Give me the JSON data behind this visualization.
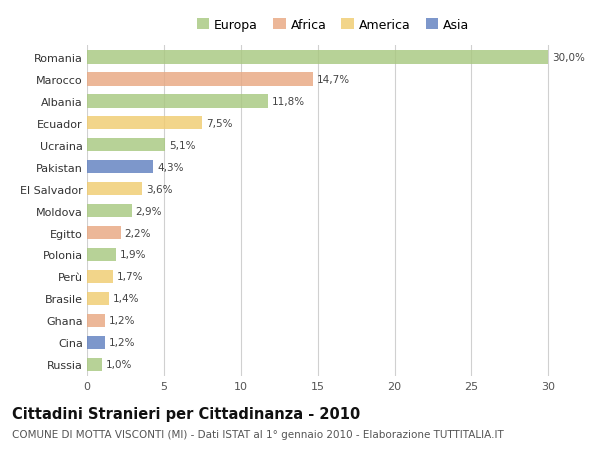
{
  "countries": [
    "Romania",
    "Marocco",
    "Albania",
    "Ecuador",
    "Ucraina",
    "Pakistan",
    "El Salvador",
    "Moldova",
    "Egitto",
    "Polonia",
    "Perù",
    "Brasile",
    "Ghana",
    "Cina",
    "Russia"
  ],
  "values": [
    30.0,
    14.7,
    11.8,
    7.5,
    5.1,
    4.3,
    3.6,
    2.9,
    2.2,
    1.9,
    1.7,
    1.4,
    1.2,
    1.2,
    1.0
  ],
  "continents": [
    "Europa",
    "Africa",
    "Europa",
    "America",
    "Europa",
    "Asia",
    "America",
    "Europa",
    "Africa",
    "Europa",
    "America",
    "America",
    "Africa",
    "Asia",
    "Europa"
  ],
  "colors": {
    "Europa": "#a8c880",
    "Africa": "#e8a882",
    "America": "#f0cc70",
    "Asia": "#6080c0"
  },
  "title": "Cittadini Stranieri per Cittadinanza - 2010",
  "subtitle": "COMUNE DI MOTTA VISCONTI (MI) - Dati ISTAT al 1° gennaio 2010 - Elaborazione TUTTITALIA.IT",
  "xlim": [
    0,
    32
  ],
  "xticks": [
    0,
    5,
    10,
    15,
    20,
    25,
    30
  ],
  "background_color": "#ffffff",
  "grid_color": "#d0d0d0",
  "bar_height": 0.6,
  "title_fontsize": 10.5,
  "subtitle_fontsize": 7.5,
  "tick_fontsize": 8,
  "value_fontsize": 7.5,
  "legend_fontsize": 9,
  "alpha": 0.82
}
